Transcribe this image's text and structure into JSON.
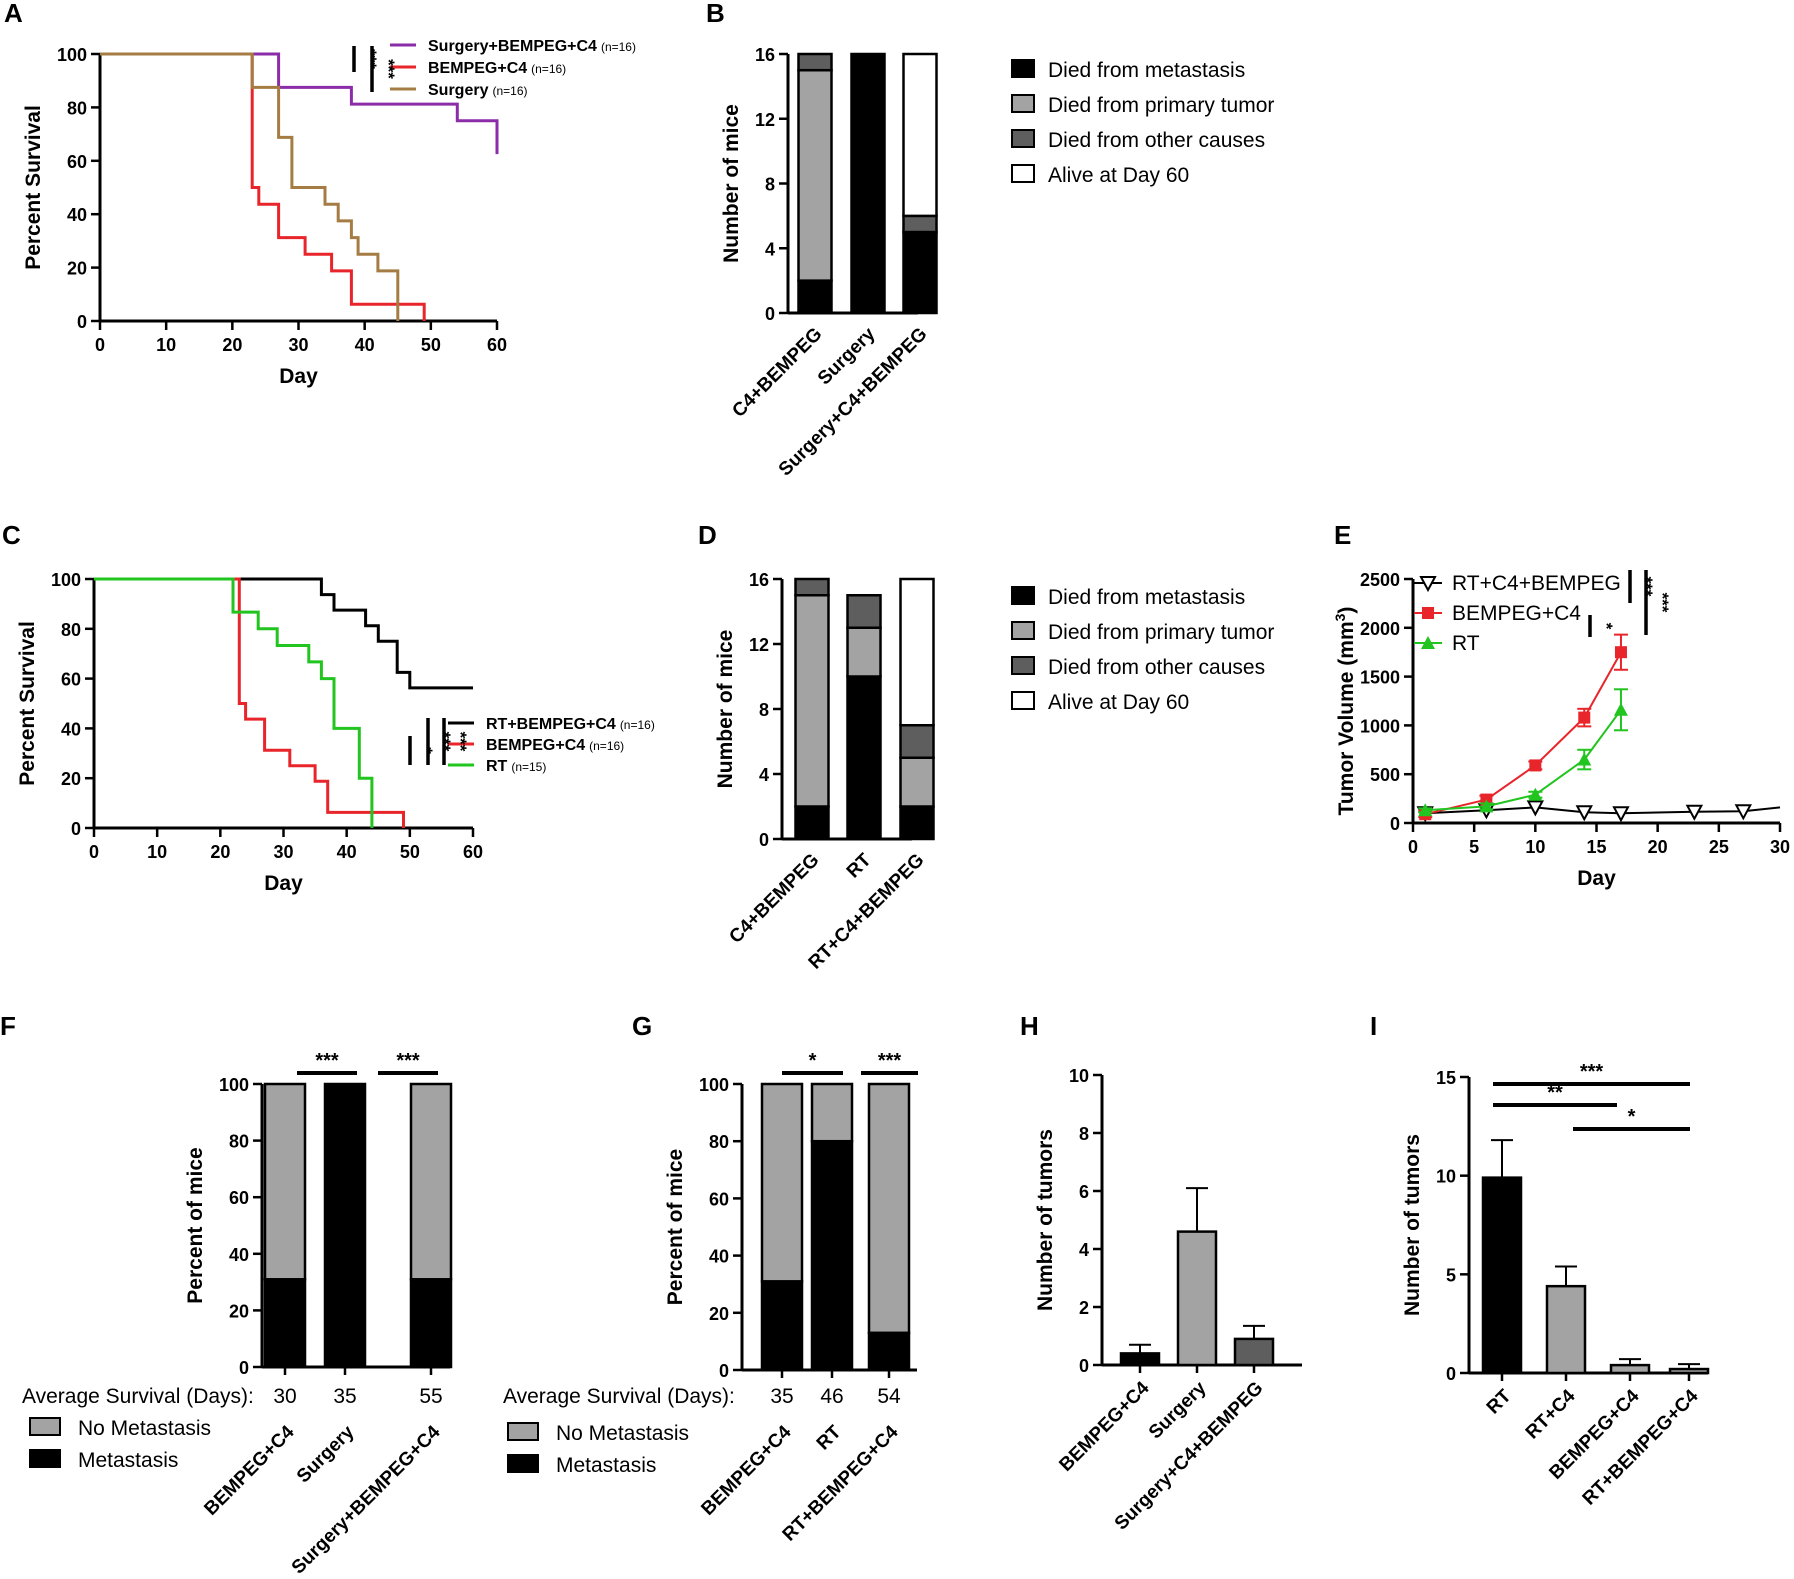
{
  "figure": {
    "panels": [
      "A",
      "B",
      "C",
      "D",
      "E",
      "F",
      "G",
      "H",
      "I"
    ]
  },
  "chart_data": [
    {
      "id": "A",
      "type": "line",
      "subtype": "kaplan-meier",
      "xlabel": "Day",
      "ylabel": "Percent Survival",
      "xlim": [
        0,
        60
      ],
      "ylim": [
        0,
        100
      ],
      "xticks": [
        0,
        10,
        20,
        30,
        40,
        50,
        60
      ],
      "yticks": [
        0,
        20,
        40,
        60,
        80,
        100
      ],
      "series": [
        {
          "name": "Surgery+BEMPEG+C4",
          "n_label": "(n=16)",
          "color": "#8b2da8",
          "steps": [
            [
              0,
              100
            ],
            [
              27,
              100
            ],
            [
              27,
              87.5
            ],
            [
              38,
              87.5
            ],
            [
              38,
              81.25
            ],
            [
              54,
              81.25
            ],
            [
              54,
              75
            ],
            [
              60,
              75
            ],
            [
              60,
              62.5
            ]
          ]
        },
        {
          "name": "BEMPEG+C4",
          "n_label": "(n=16)",
          "color": "#e8252a",
          "steps": [
            [
              0,
              100
            ],
            [
              23,
              100
            ],
            [
              23,
              50
            ],
            [
              24,
              50
            ],
            [
              24,
              43.75
            ],
            [
              27,
              43.75
            ],
            [
              27,
              31.25
            ],
            [
              31,
              31.25
            ],
            [
              31,
              25
            ],
            [
              35,
              25
            ],
            [
              35,
              18.75
            ],
            [
              38,
              18.75
            ],
            [
              38,
              6.25
            ],
            [
              49,
              6.25
            ],
            [
              49,
              0
            ]
          ]
        },
        {
          "name": "Surgery",
          "n_label": "(n=16)",
          "color": "#a57c43",
          "steps": [
            [
              0,
              100
            ],
            [
              23,
              100
            ],
            [
              23,
              87.5
            ],
            [
              27,
              87.5
            ],
            [
              27,
              68.75
            ],
            [
              29,
              68.75
            ],
            [
              29,
              50
            ],
            [
              34,
              50
            ],
            [
              34,
              43.75
            ],
            [
              36,
              43.75
            ],
            [
              36,
              37.5
            ],
            [
              38,
              37.5
            ],
            [
              38,
              31.25
            ],
            [
              39,
              31.25
            ],
            [
              39,
              25
            ],
            [
              42,
              25
            ],
            [
              42,
              18.75
            ],
            [
              45,
              18.75
            ],
            [
              45,
              0
            ]
          ]
        }
      ],
      "significance": [
        "***",
        "***"
      ]
    },
    {
      "id": "B",
      "type": "bar",
      "subtype": "stacked",
      "ylabel": "Number of mice",
      "ylim": [
        0,
        16
      ],
      "yticks": [
        0,
        4,
        8,
        12,
        16
      ],
      "categories": [
        "C4+BEMPEG",
        "Surgery",
        "Surgery+C4+BEMPEG"
      ],
      "series": [
        {
          "name": "Died from metastasis",
          "color": "#000000",
          "values": [
            2,
            16,
            5
          ]
        },
        {
          "name": "Died from primary tumor",
          "color": "#a3a3a3",
          "values": [
            13,
            0,
            0
          ]
        },
        {
          "name": "Died from other causes",
          "color": "#5e5e5e",
          "values": [
            1,
            0,
            1
          ]
        },
        {
          "name": "Alive at Day 60",
          "color": "#ffffff",
          "values": [
            0,
            0,
            10
          ]
        }
      ]
    },
    {
      "id": "C",
      "type": "line",
      "subtype": "kaplan-meier",
      "xlabel": "Day",
      "ylabel": "Percent Survival",
      "xlim": [
        0,
        60
      ],
      "ylim": [
        0,
        100
      ],
      "xticks": [
        0,
        10,
        20,
        30,
        40,
        50,
        60
      ],
      "yticks": [
        0,
        20,
        40,
        60,
        80,
        100
      ],
      "series": [
        {
          "name": "RT+BEMPEG+C4",
          "n_label": "(n=16)",
          "color": "#000000",
          "steps": [
            [
              0,
              100
            ],
            [
              36,
              100
            ],
            [
              36,
              93.75
            ],
            [
              38,
              93.75
            ],
            [
              38,
              87.5
            ],
            [
              43,
              87.5
            ],
            [
              43,
              81.25
            ],
            [
              45,
              81.25
            ],
            [
              45,
              75
            ],
            [
              48,
              75
            ],
            [
              48,
              62.5
            ],
            [
              50,
              62.5
            ],
            [
              50,
              56.25
            ],
            [
              60,
              56.25
            ]
          ]
        },
        {
          "name": "BEMPEG+C4",
          "n_label": "(n=16)",
          "color": "#e8252a",
          "steps": [
            [
              0,
              100
            ],
            [
              23,
              100
            ],
            [
              23,
              87.5
            ],
            [
              23,
              87.5
            ],
            [
              23,
              50
            ],
            [
              24,
              50
            ],
            [
              24,
              43.75
            ],
            [
              27,
              43.75
            ],
            [
              27,
              31.25
            ],
            [
              31,
              31.25
            ],
            [
              31,
              25
            ],
            [
              35,
              25
            ],
            [
              35,
              18.75
            ],
            [
              37,
              18.75
            ],
            [
              37,
              6.25
            ],
            [
              49,
              6.25
            ],
            [
              49,
              0
            ]
          ]
        },
        {
          "name": "RT",
          "n_label": "(n=15)",
          "color": "#22c41f",
          "steps": [
            [
              0,
              100
            ],
            [
              22,
              100
            ],
            [
              22,
              86.7
            ],
            [
              26,
              86.7
            ],
            [
              26,
              80
            ],
            [
              29,
              80
            ],
            [
              29,
              73.3
            ],
            [
              34,
              73.3
            ],
            [
              34,
              66.7
            ],
            [
              36,
              66.7
            ],
            [
              36,
              60
            ],
            [
              38,
              60
            ],
            [
              38,
              40
            ],
            [
              42,
              40
            ],
            [
              42,
              20
            ],
            [
              44,
              20
            ],
            [
              44,
              0
            ]
          ]
        }
      ],
      "significance": [
        "*",
        "***",
        "***"
      ]
    },
    {
      "id": "D",
      "type": "bar",
      "subtype": "stacked",
      "ylabel": "Number of mice",
      "ylim": [
        0,
        16
      ],
      "yticks": [
        0,
        4,
        8,
        12,
        16
      ],
      "categories": [
        "C4+BEMPEG",
        "RT",
        "RT+C4+BEMPEG"
      ],
      "series": [
        {
          "name": "Died from metastasis",
          "color": "#000000",
          "values": [
            2,
            10,
            2
          ]
        },
        {
          "name": "Died from primary tumor",
          "color": "#a3a3a3",
          "values": [
            13,
            3,
            3
          ]
        },
        {
          "name": "Died from other causes",
          "color": "#5e5e5e",
          "values": [
            1,
            2,
            2
          ]
        },
        {
          "name": "Alive at Day 60",
          "color": "#ffffff",
          "values": [
            0,
            0,
            9
          ]
        }
      ]
    },
    {
      "id": "E",
      "type": "line",
      "xlabel": "Day",
      "ylabel": "Tumor Volume (mm³)",
      "xlim": [
        0,
        30
      ],
      "ylim": [
        0,
        2500
      ],
      "xticks": [
        0,
        5,
        10,
        15,
        20,
        25,
        30
      ],
      "yticks": [
        0,
        500,
        1000,
        1500,
        2000,
        2500
      ],
      "series": [
        {
          "name": "RT+C4+BEMPEG",
          "color": "#000000",
          "marker": "triangle-down-open",
          "x": [
            1,
            6,
            10,
            14,
            17,
            23,
            27,
            30
          ],
          "y": [
            100,
            130,
            160,
            110,
            100,
            115,
            120,
            160
          ],
          "markers_at": [
            1,
            6,
            10,
            14,
            17,
            23,
            27
          ]
        },
        {
          "name": "BEMPEG+C4",
          "color": "#e8252a",
          "marker": "square",
          "x": [
            1,
            6,
            10,
            14,
            17
          ],
          "y": [
            90,
            240,
            590,
            1080,
            1750
          ],
          "err": [
            30,
            40,
            40,
            90,
            180
          ]
        },
        {
          "name": "RT",
          "color": "#22c41f",
          "marker": "triangle-up",
          "x": [
            1,
            6,
            10,
            14,
            17
          ],
          "y": [
            130,
            170,
            290,
            650,
            1160
          ],
          "err": [
            20,
            30,
            30,
            100,
            210
          ]
        }
      ],
      "significance": [
        "*",
        "***",
        "***"
      ]
    },
    {
      "id": "F",
      "type": "bar",
      "subtype": "stacked-percent",
      "ylabel": "Percent of mice",
      "ylim": [
        0,
        100
      ],
      "yticks": [
        0,
        20,
        40,
        60,
        80,
        100
      ],
      "categories": [
        "BEMPEG+C4",
        "Surgery",
        "Surgery+BEMPEG+C4"
      ],
      "series": [
        {
          "name": "Metastasis",
          "color": "#000000",
          "values": [
            31,
            100,
            31
          ]
        },
        {
          "name": "No Metastasis",
          "color": "#a3a3a3",
          "values": [
            69,
            0,
            69
          ]
        }
      ],
      "average_survival_label": "Average Survival (Days):",
      "average_survival": [
        "30",
        "35",
        "55"
      ],
      "significance": [
        "***",
        "***"
      ]
    },
    {
      "id": "G",
      "type": "bar",
      "subtype": "stacked-percent",
      "ylabel": "Percent of mice",
      "ylim": [
        0,
        100
      ],
      "yticks": [
        0,
        20,
        40,
        60,
        80,
        100
      ],
      "categories": [
        "BEMPEG+C4",
        "RT",
        "RT+BEMPEG+C4"
      ],
      "series": [
        {
          "name": "Metastasis",
          "color": "#000000",
          "values": [
            31,
            80,
            13
          ]
        },
        {
          "name": "No Metastasis",
          "color": "#a3a3a3",
          "values": [
            69,
            20,
            87
          ]
        }
      ],
      "average_survival_label": "Average Survival (Days):",
      "average_survival": [
        "35",
        "46",
        "54"
      ],
      "significance": [
        "*",
        "***"
      ]
    },
    {
      "id": "H",
      "type": "bar",
      "ylabel": "Number of tumors",
      "ylim": [
        0,
        10
      ],
      "yticks": [
        0,
        2,
        4,
        6,
        8,
        10
      ],
      "categories": [
        "BEMPEG+C4",
        "Surgery",
        "Surgery+C4+BEMPEG"
      ],
      "values": [
        0.4,
        4.6,
        0.9
      ],
      "err": [
        0.3,
        1.5,
        0.45
      ],
      "colors": [
        "#000000",
        "#a3a3a3",
        "#5e5e5e"
      ]
    },
    {
      "id": "I",
      "type": "bar",
      "ylabel": "Number of tumors",
      "ylim": [
        0,
        15
      ],
      "yticks": [
        0,
        5,
        10,
        15
      ],
      "categories": [
        "RT",
        "RT+C4",
        "BEMPEG+C4",
        "RT+BEMPEG+C4"
      ],
      "values": [
        9.9,
        4.4,
        0.4,
        0.2
      ],
      "err": [
        1.9,
        1.0,
        0.3,
        0.25
      ],
      "colors": [
        "#000000",
        "#a3a3a3",
        "#a3a3a3",
        "#a3a3a3"
      ],
      "significance": [
        "***",
        "**",
        "*"
      ]
    }
  ]
}
